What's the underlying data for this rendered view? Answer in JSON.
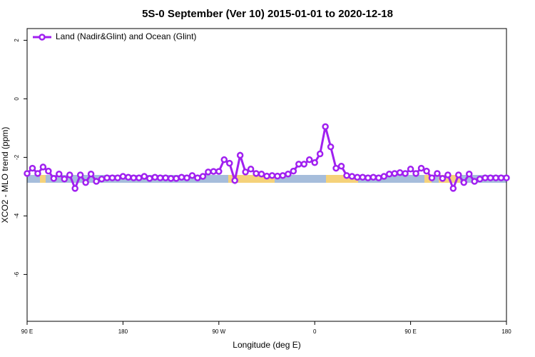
{
  "chart_data": {
    "type": "line",
    "title": "5S-0 September (Ver 10)   2015-01-01 to 2020-12-18",
    "xlabel": "Longitude (deg E)",
    "ylabel": "XCO2 - MLO trend (ppm)",
    "xlim": [
      90,
      540
    ],
    "xticks": [
      {
        "value": 90,
        "label": "90 E"
      },
      180,
      {
        "value": 270,
        "label": "90 W"
      },
      {
        "value": 360,
        "label": "0"
      },
      {
        "value": 450,
        "label": "90 E"
      },
      {
        "value": 540,
        "label": "180"
      }
    ],
    "ylim": [
      -7.6,
      2.4
    ],
    "yticks": [
      2,
      0,
      -2,
      -4,
      -6
    ],
    "legend": "upper left",
    "x": [
      90,
      95,
      100,
      105,
      110,
      115,
      120,
      125,
      130,
      135,
      140,
      145,
      150,
      155,
      160,
      165,
      170,
      175,
      180,
      185,
      190,
      195,
      200,
      205,
      210,
      215,
      220,
      225,
      230,
      235,
      240,
      245,
      250,
      255,
      260,
      265,
      270,
      275,
      280,
      285,
      290,
      295,
      300,
      305,
      310,
      315,
      320,
      325,
      330,
      335,
      340,
      345,
      350,
      355,
      360,
      365,
      370,
      375,
      380,
      385,
      390,
      395,
      400,
      405,
      410,
      415,
      420,
      425,
      430,
      435,
      440,
      445,
      450,
      455,
      460,
      465,
      470,
      475,
      480,
      485,
      490,
      495,
      500,
      505,
      510,
      515,
      520,
      525,
      530,
      535,
      540
    ],
    "series": [
      {
        "name": "Land (Nadir&Glint) and Ocean (Glint)",
        "color": "#a020f0",
        "values": [
          -2.55,
          -2.37,
          -2.55,
          -2.33,
          -2.47,
          -2.72,
          -2.57,
          -2.74,
          -2.6,
          -3.06,
          -2.6,
          -2.86,
          -2.57,
          -2.82,
          -2.74,
          -2.7,
          -2.7,
          -2.7,
          -2.65,
          -2.68,
          -2.7,
          -2.7,
          -2.65,
          -2.72,
          -2.68,
          -2.7,
          -2.7,
          -2.72,
          -2.72,
          -2.68,
          -2.7,
          -2.62,
          -2.7,
          -2.65,
          -2.5,
          -2.48,
          -2.48,
          -2.08,
          -2.2,
          -2.79,
          -1.93,
          -2.5,
          -2.4,
          -2.55,
          -2.57,
          -2.64,
          -2.62,
          -2.64,
          -2.62,
          -2.57,
          -2.47,
          -2.23,
          -2.23,
          -2.08,
          -2.18,
          -1.88,
          -0.95,
          -1.64,
          -2.37,
          -2.3,
          -2.62,
          -2.65,
          -2.68,
          -2.68,
          -2.7,
          -2.68,
          -2.7,
          -2.65,
          -2.57,
          -2.55,
          -2.52,
          -2.55,
          -2.4,
          -2.55,
          -2.37,
          -2.47,
          -2.7,
          -2.55,
          -2.72,
          -2.6,
          -3.06,
          -2.6,
          -2.86,
          -2.57,
          -2.82,
          -2.74,
          -2.7,
          -2.7,
          -2.7,
          -2.7,
          -2.7
        ]
      }
    ]
  }
}
